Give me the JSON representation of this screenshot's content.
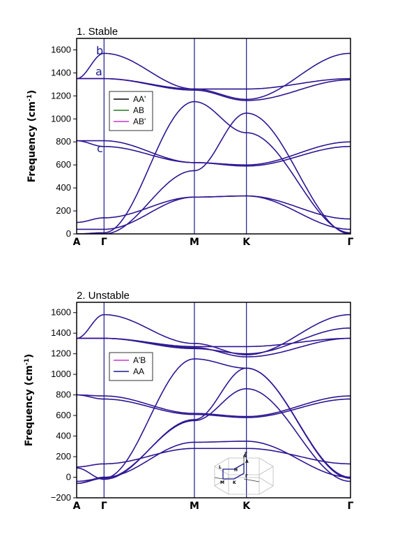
{
  "chart_data": [
    {
      "type": "line",
      "title": "1. Stable",
      "ylabel_main": "Frequency (cm",
      "ylabel_sup": "-1",
      "ylabel_close": ")",
      "ylim": [
        0,
        1700
      ],
      "yticks": [
        0,
        200,
        400,
        600,
        800,
        1000,
        1200,
        1400,
        1600
      ],
      "kpath": [
        {
          "label": "A",
          "pos": 0
        },
        {
          "label": "Γ",
          "pos": 0.1
        },
        {
          "label": "M",
          "pos": 0.43
        },
        {
          "label": "K",
          "pos": 0.62
        },
        {
          "label": "Γ",
          "pos": 1.0
        }
      ],
      "legend": [
        {
          "name": "AA'",
          "color": "#000000"
        },
        {
          "name": "AB",
          "color": "#1f7a1f"
        },
        {
          "name": "AB'",
          "color": "#cc33cc"
        }
      ],
      "annotations": [
        "b",
        "a",
        "c"
      ],
      "bands": [
        {
          "x": [
            0,
            0.1,
            0.43,
            0.62,
            1.0
          ],
          "y": [
            0,
            0,
            550,
            1050,
            0
          ]
        },
        {
          "x": [
            0,
            0.1,
            0.43,
            0.62,
            1.0
          ],
          "y": [
            0,
            10,
            1150,
            880,
            10
          ]
        },
        {
          "x": [
            0,
            0.1,
            0.43,
            0.62,
            1.0
          ],
          "y": [
            40,
            40,
            320,
            330,
            40
          ]
        },
        {
          "x": [
            0,
            0.1,
            0.43,
            0.62,
            1.0
          ],
          "y": [
            100,
            140,
            320,
            330,
            130
          ]
        },
        {
          "x": [
            0,
            0.1,
            0.43,
            0.62,
            1.0
          ],
          "y": [
            810,
            810,
            620,
            600,
            800
          ]
        },
        {
          "x": [
            0,
            0.1,
            0.43,
            0.62,
            1.0
          ],
          "y": [
            810,
            760,
            620,
            590,
            760
          ]
        },
        {
          "x": [
            0,
            0.1,
            0.43,
            0.62,
            1.0
          ],
          "y": [
            1350,
            1350,
            1250,
            1160,
            1340
          ]
        },
        {
          "x": [
            0,
            0.1,
            0.43,
            0.62,
            1.0
          ],
          "y": [
            1350,
            1350,
            1260,
            1260,
            1350
          ]
        },
        {
          "x": [
            0,
            0.1,
            0.43,
            0.62,
            1.0
          ],
          "y": [
            1350,
            1570,
            1260,
            1170,
            1570
          ]
        }
      ]
    },
    {
      "type": "line",
      "title": "2. Unstable",
      "ylabel_main": "Frequency (cm",
      "ylabel_sup": "-1",
      "ylabel_close": ")",
      "ylim": [
        -200,
        1700
      ],
      "yticks": [
        -200,
        0,
        200,
        400,
        600,
        800,
        1000,
        1200,
        1400,
        1600
      ],
      "kpath": [
        {
          "label": "A",
          "pos": 0
        },
        {
          "label": "Γ",
          "pos": 0.1
        },
        {
          "label": "M",
          "pos": 0.43
        },
        {
          "label": "K",
          "pos": 0.62
        },
        {
          "label": "Γ",
          "pos": 1.0
        }
      ],
      "legend": [
        {
          "name": "A'B",
          "color": "#cc33cc"
        },
        {
          "name": "AA",
          "color": "#1a1a8c"
        }
      ],
      "inset_labels": [
        "A",
        "Γ",
        "M",
        "K",
        "H",
        "L",
        "Γ",
        "A"
      ],
      "bands": [
        {
          "x": [
            0,
            0.1,
            0.43,
            0.62,
            1.0
          ],
          "y": [
            -40,
            -10,
            550,
            860,
            -40
          ]
        },
        {
          "x": [
            0,
            0.1,
            0.43,
            0.62,
            1.0
          ],
          "y": [
            90,
            -20,
            560,
            1060,
            0
          ]
        },
        {
          "x": [
            0,
            0.1,
            0.43,
            0.62,
            1.0
          ],
          "y": [
            100,
            130,
            280,
            280,
            130
          ]
        },
        {
          "x": [
            0,
            0.1,
            0.43,
            0.62,
            1.0
          ],
          "y": [
            -60,
            0,
            340,
            350,
            0
          ]
        },
        {
          "x": [
            0,
            0.1,
            0.43,
            0.62,
            1.0
          ],
          "y": [
            -60,
            -10,
            1150,
            1060,
            -10
          ]
        },
        {
          "x": [
            0,
            0.1,
            0.43,
            0.62,
            1.0
          ],
          "y": [
            800,
            790,
            620,
            590,
            790
          ]
        },
        {
          "x": [
            0,
            0.1,
            0.43,
            0.62,
            1.0
          ],
          "y": [
            800,
            760,
            610,
            580,
            760
          ]
        },
        {
          "x": [
            0,
            0.1,
            0.43,
            0.62,
            1.0
          ],
          "y": [
            1350,
            1350,
            1260,
            1170,
            1350
          ]
        },
        {
          "x": [
            0,
            0.1,
            0.43,
            0.62,
            1.0
          ],
          "y": [
            1350,
            1350,
            1270,
            1270,
            1350
          ]
        },
        {
          "x": [
            0,
            0.1,
            0.43,
            0.62,
            1.0
          ],
          "y": [
            1350,
            1580,
            1300,
            1190,
            1580
          ]
        },
        {
          "x": [
            0,
            0.1,
            0.43,
            0.62,
            1.0
          ],
          "y": [
            1350,
            1350,
            1250,
            1200,
            1450
          ]
        }
      ]
    }
  ]
}
